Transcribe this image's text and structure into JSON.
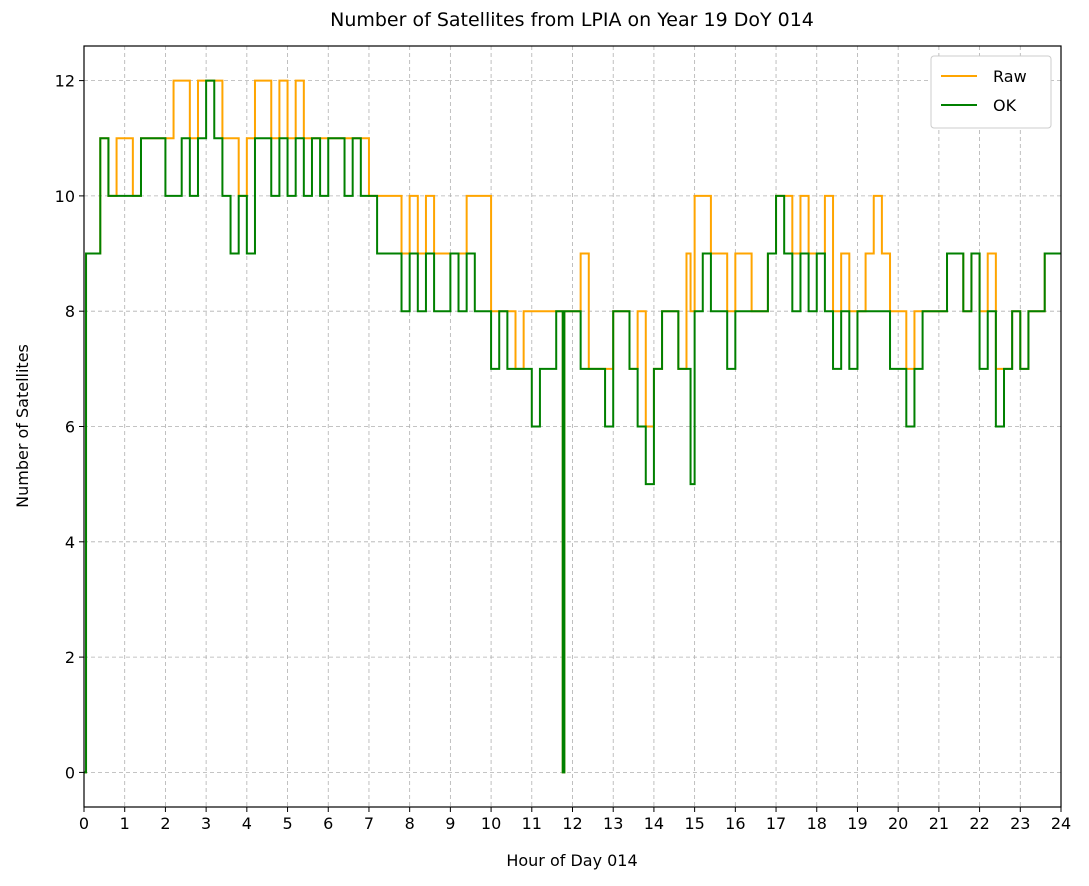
{
  "chart_data": {
    "type": "line",
    "title": "Number of Satellites from LPIA on Year 19 DoY 014",
    "x_label": "Hour of Day 014",
    "y_label": "Number of Satellites",
    "xlim": [
      0,
      24
    ],
    "ylim": [
      -0.6,
      12.6
    ],
    "xticks": [
      0,
      1,
      2,
      3,
      4,
      5,
      6,
      7,
      8,
      9,
      10,
      11,
      12,
      13,
      14,
      15,
      16,
      17,
      18,
      19,
      20,
      21,
      22,
      23,
      24
    ],
    "yticks": [
      0,
      2,
      4,
      6,
      8,
      10,
      12
    ],
    "grid": true,
    "legend": "upper right",
    "step": "post",
    "x": [
      0,
      0.05,
      0.2,
      0.4,
      0.6,
      0.8,
      1,
      1.2,
      1.4,
      1.6,
      1.8,
      2,
      2.2,
      2.4,
      2.6,
      2.8,
      3,
      3.2,
      3.4,
      3.6,
      3.8,
      4,
      4.2,
      4.4,
      4.6,
      4.8,
      5,
      5.2,
      5.4,
      5.6,
      5.8,
      6,
      6.2,
      6.4,
      6.6,
      6.8,
      7,
      7.2,
      7.4,
      7.6,
      7.8,
      8,
      8.2,
      8.4,
      8.6,
      8.8,
      9,
      9.2,
      9.4,
      9.6,
      9.8,
      10,
      10.2,
      10.4,
      10.6,
      10.8,
      11,
      11.2,
      11.4,
      11.6,
      11.76,
      11.8,
      12,
      12.2,
      12.4,
      12.6,
      12.8,
      13,
      13.2,
      13.4,
      13.6,
      13.8,
      14,
      14.2,
      14.4,
      14.6,
      14.8,
      14.9,
      15,
      15.2,
      15.4,
      15.6,
      15.8,
      16,
      16.2,
      16.4,
      16.6,
      16.8,
      17,
      17.2,
      17.4,
      17.6,
      17.8,
      18,
      18.2,
      18.4,
      18.6,
      18.8,
      19,
      19.2,
      19.4,
      19.6,
      19.8,
      20,
      20.2,
      20.4,
      20.6,
      20.8,
      21,
      21.2,
      21.4,
      21.6,
      21.8,
      22,
      22.2,
      22.4,
      22.6,
      22.8,
      23,
      23.2,
      23.4,
      23.6,
      23.8,
      24
    ],
    "series": [
      {
        "name": "Raw",
        "color": "#ffa500",
        "values": [
          0,
          9,
          9,
          11,
          10,
          11,
          11,
          10,
          11,
          11,
          11,
          11,
          12,
          12,
          11,
          12,
          12,
          12,
          11,
          11,
          10,
          11,
          12,
          12,
          11,
          12,
          11,
          12,
          11,
          11,
          11,
          11,
          11,
          11,
          11,
          11,
          10,
          10,
          10,
          10,
          9,
          10,
          9,
          10,
          9,
          9,
          9,
          9,
          10,
          10,
          10,
          8,
          8,
          8,
          7,
          8,
          8,
          8,
          8,
          8,
          0,
          8,
          8,
          9,
          7,
          7,
          7,
          8,
          8,
          7,
          8,
          6,
          7,
          8,
          8,
          7,
          9,
          8,
          10,
          10,
          9,
          9,
          8,
          9,
          9,
          8,
          8,
          9,
          10,
          10,
          9,
          10,
          9,
          9,
          10,
          8,
          9,
          8,
          8,
          9,
          10,
          9,
          8,
          8,
          7,
          8,
          8,
          8,
          8,
          9,
          9,
          8,
          9,
          8,
          9,
          7,
          7,
          8,
          7,
          8,
          8,
          9,
          9,
          9
        ]
      },
      {
        "name": "OK",
        "color": "#008000",
        "values": [
          0,
          9,
          9,
          11,
          10,
          10,
          10,
          10,
          11,
          11,
          11,
          10,
          10,
          11,
          10,
          11,
          12,
          11,
          10,
          9,
          10,
          9,
          11,
          11,
          10,
          11,
          10,
          11,
          10,
          11,
          10,
          11,
          11,
          10,
          11,
          10,
          10,
          9,
          9,
          9,
          8,
          9,
          8,
          9,
          8,
          8,
          9,
          8,
          9,
          8,
          8,
          7,
          8,
          7,
          7,
          7,
          6,
          7,
          7,
          8,
          0,
          8,
          8,
          7,
          7,
          7,
          6,
          8,
          8,
          7,
          6,
          5,
          7,
          8,
          8,
          7,
          7,
          5,
          8,
          9,
          8,
          8,
          7,
          8,
          8,
          8,
          8,
          9,
          10,
          9,
          8,
          9,
          8,
          9,
          8,
          7,
          8,
          7,
          8,
          8,
          8,
          8,
          7,
          7,
          6,
          7,
          8,
          8,
          8,
          9,
          9,
          8,
          9,
          7,
          8,
          6,
          7,
          8,
          7,
          8,
          8,
          9,
          9,
          9
        ]
      }
    ]
  }
}
